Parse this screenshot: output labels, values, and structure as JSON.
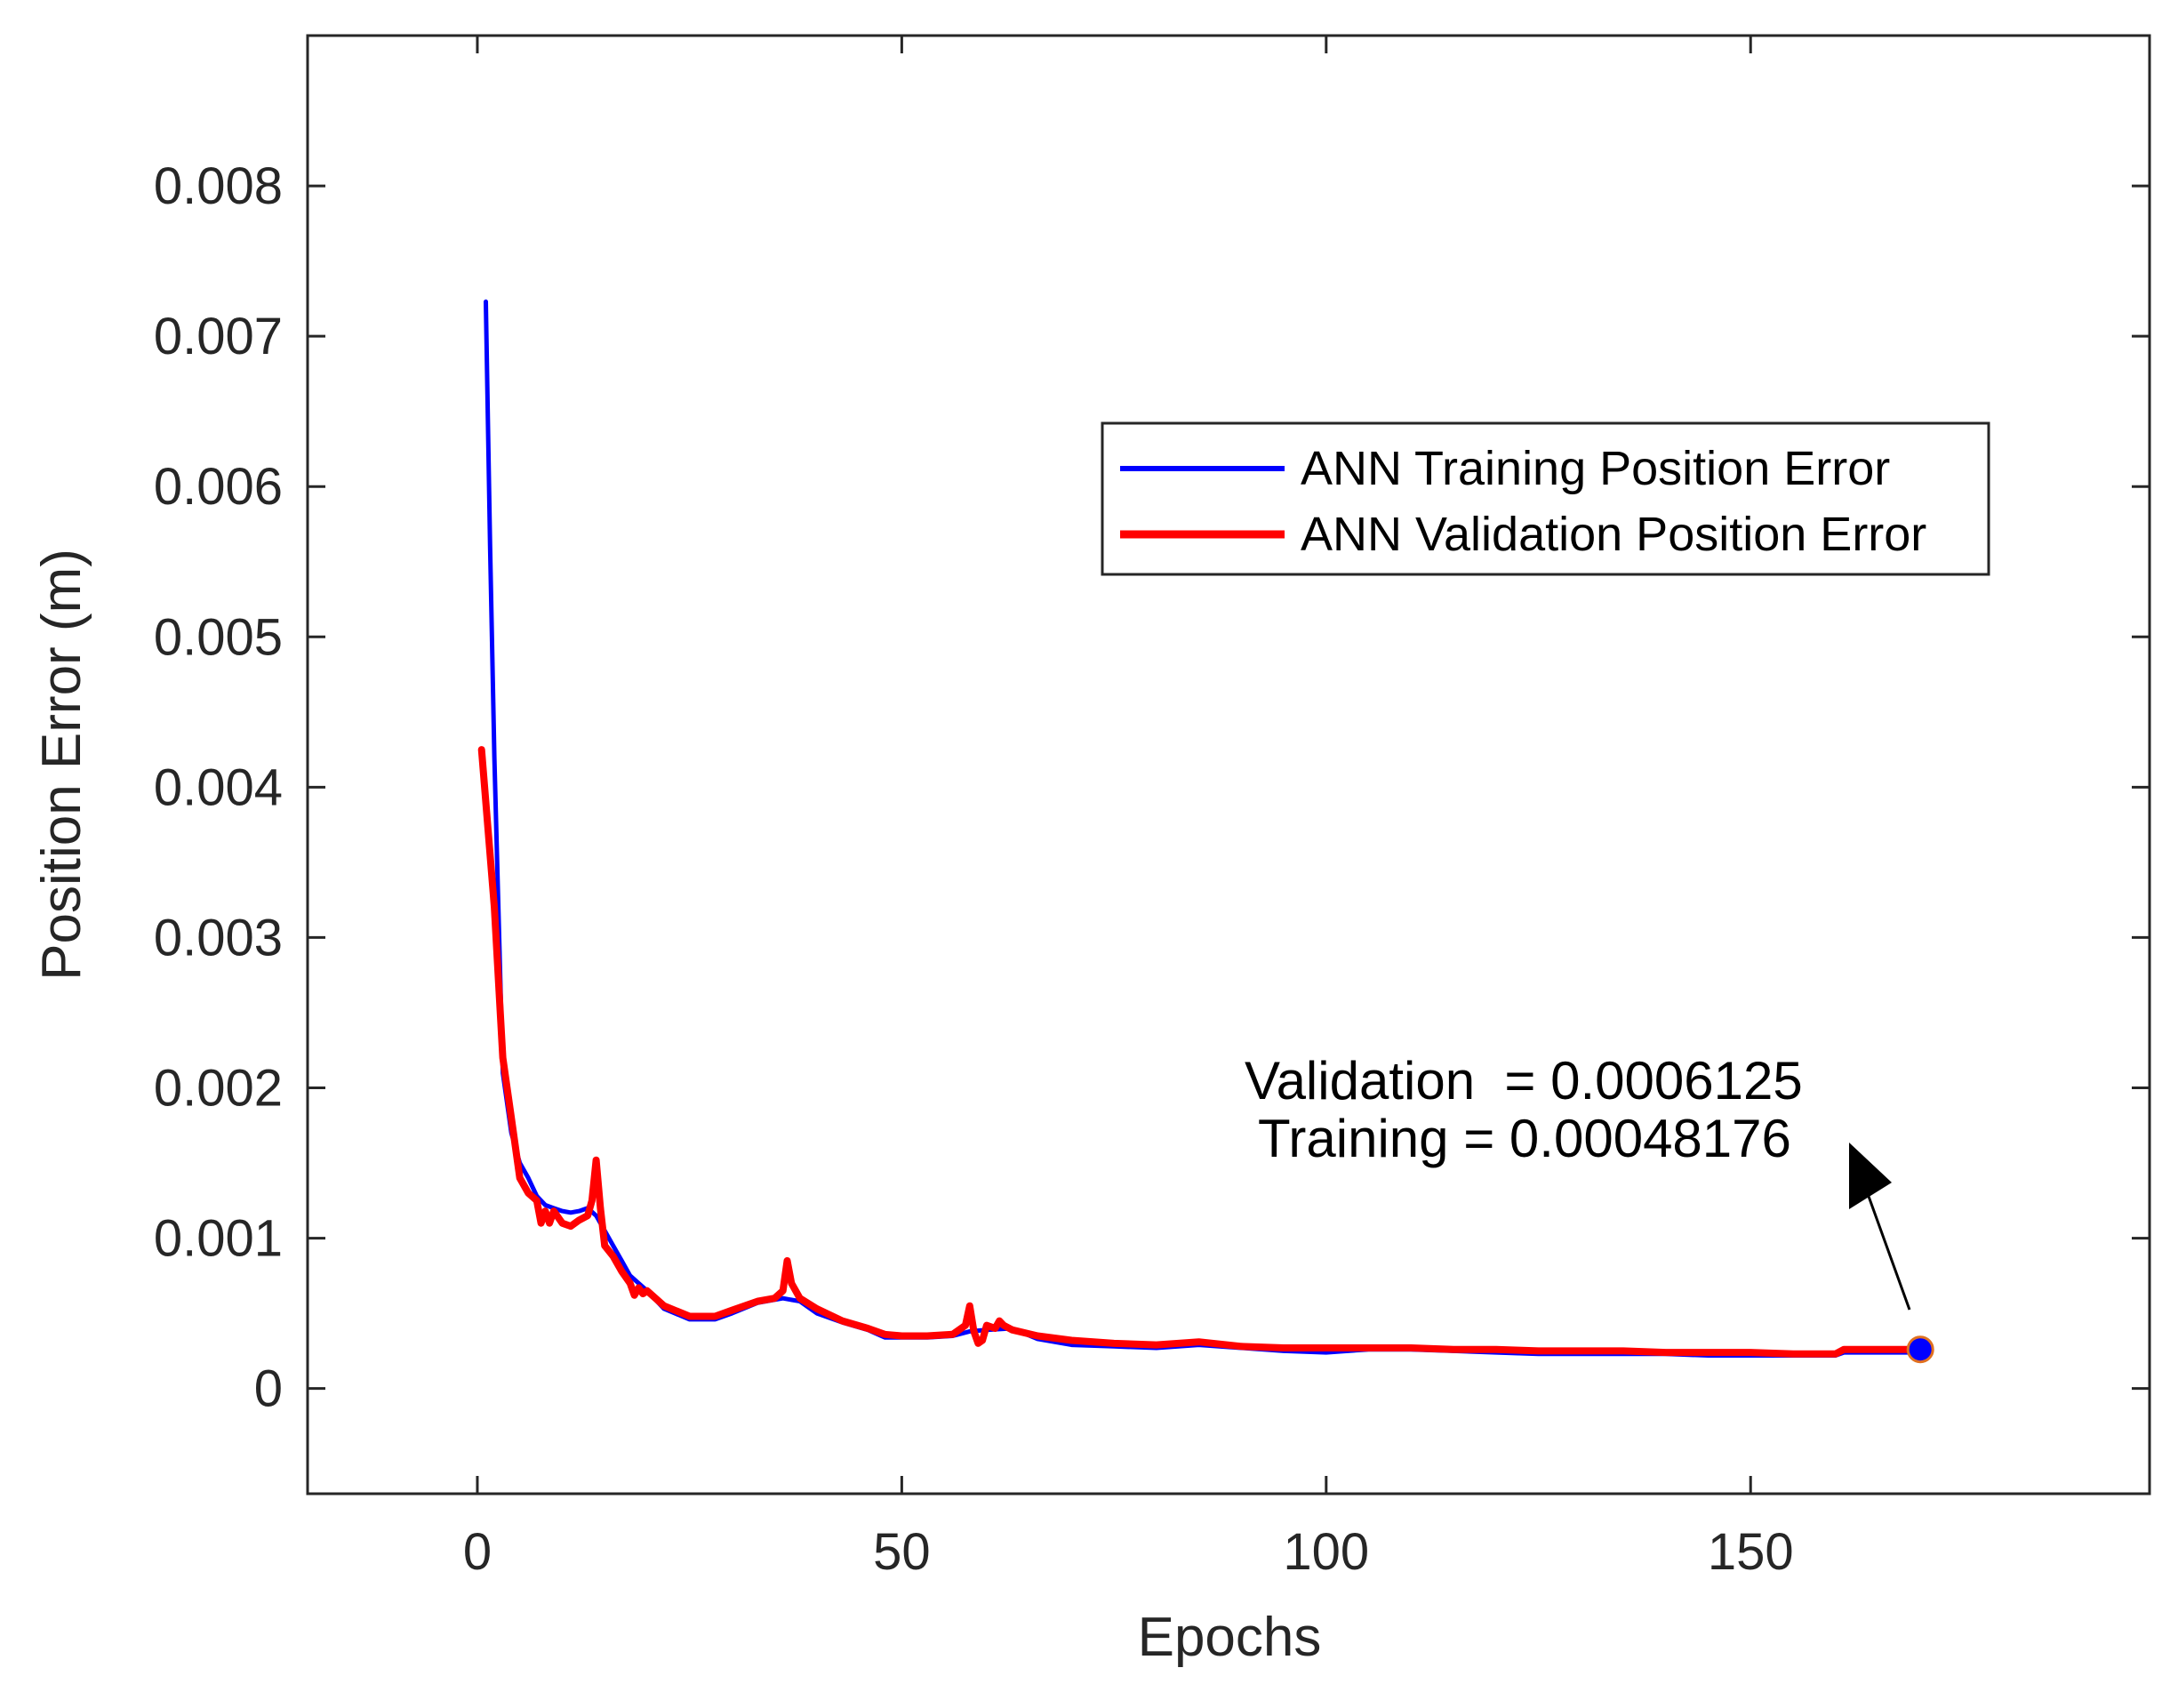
{
  "chart_data": {
    "type": "line",
    "title": "",
    "xlabel": "Epochs",
    "ylabel": "Position Error (m)",
    "xlim": [
      -20,
      197
    ],
    "ylim": [
      -0.0007,
      0.009
    ],
    "x_ticks": [
      0,
      50,
      100,
      150
    ],
    "x_tick_labels": [
      "0",
      "50",
      "100",
      "150"
    ],
    "y_ticks": [
      0,
      0.001,
      0.002,
      0.003,
      0.004,
      0.005,
      0.006,
      0.007,
      0.008
    ],
    "y_tick_labels": [
      "0",
      "0.001",
      "0.002",
      "0.003",
      "0.004",
      "0.005",
      "0.006",
      "0.007",
      "0.008"
    ],
    "grid": false,
    "legend_position": "top-right",
    "series": [
      {
        "name": "ANN Training Position Error",
        "color": "#0000ff",
        "x": [
          1,
          1.5,
          2,
          3,
          4,
          5,
          6,
          7,
          8,
          9,
          10,
          11,
          12,
          13,
          14,
          15,
          16,
          17,
          18,
          20,
          22,
          25,
          28,
          30,
          33,
          36,
          38,
          40,
          43,
          46,
          48,
          50,
          53,
          56,
          58,
          60,
          63,
          66,
          70,
          75,
          80,
          85,
          90,
          95,
          100,
          105,
          110,
          115,
          120,
          125,
          130,
          135,
          140,
          145,
          150,
          155,
          160,
          161,
          165,
          168,
          170
        ],
        "y": [
          0.00723,
          0.0056,
          0.0042,
          0.0021,
          0.0017,
          0.0015,
          0.0014,
          0.00128,
          0.00122,
          0.0012,
          0.00118,
          0.00117,
          0.00118,
          0.0012,
          0.00115,
          0.00105,
          0.00095,
          0.00085,
          0.00075,
          0.00065,
          0.00053,
          0.00046,
          0.00046,
          0.0005,
          0.00057,
          0.0006,
          0.00058,
          0.0005,
          0.00044,
          0.00039,
          0.00034,
          0.00034,
          0.00034,
          0.00035,
          0.00038,
          0.00039,
          0.0004,
          0.00033,
          0.00029,
          0.00028,
          0.00027,
          0.00029,
          0.00027,
          0.00025,
          0.00024,
          0.00026,
          0.00026,
          0.00025,
          0.00024,
          0.00023,
          0.00023,
          0.00023,
          0.00023,
          0.00022,
          0.00022,
          0.00022,
          0.00022,
          0.00024,
          0.00024,
          0.00024,
          0.00024
        ]
      },
      {
        "name": "ANN Validation Position Error",
        "color": "#ff0000",
        "x": [
          0.5,
          1,
          2,
          3,
          4,
          5,
          6,
          7,
          7.5,
          8,
          8.5,
          9,
          10,
          11,
          12,
          13,
          13.5,
          14,
          14.5,
          15,
          16,
          17,
          18,
          18.5,
          19,
          19.5,
          20,
          22,
          25,
          28,
          30,
          33,
          35,
          36,
          36.5,
          37,
          38,
          40,
          43,
          46,
          48,
          50,
          53,
          56,
          57.5,
          58,
          58.5,
          59,
          59.5,
          60,
          61,
          61.5,
          62,
          63,
          66,
          70,
          75,
          80,
          85,
          90,
          95,
          100,
          105,
          110,
          115,
          120,
          125,
          130,
          135,
          140,
          145,
          150,
          155,
          160,
          161,
          165,
          168,
          170
        ],
        "y": [
          0.00425,
          0.0039,
          0.0032,
          0.0022,
          0.0018,
          0.0014,
          0.0013,
          0.00125,
          0.0011,
          0.00118,
          0.0011,
          0.00118,
          0.0011,
          0.00108,
          0.00112,
          0.00115,
          0.00125,
          0.00152,
          0.0012,
          0.00095,
          0.00088,
          0.00078,
          0.0007,
          0.00062,
          0.00067,
          0.00063,
          0.00065,
          0.00055,
          0.00048,
          0.00048,
          0.00052,
          0.00058,
          0.0006,
          0.00065,
          0.00085,
          0.0007,
          0.0006,
          0.00053,
          0.00045,
          0.0004,
          0.00036,
          0.00035,
          0.00035,
          0.00036,
          0.00042,
          0.00055,
          0.00038,
          0.0003,
          0.00032,
          0.00042,
          0.0004,
          0.00045,
          0.00042,
          0.00039,
          0.00035,
          0.00032,
          0.0003,
          0.00029,
          0.00031,
          0.00028,
          0.00027,
          0.00027,
          0.00027,
          0.00027,
          0.00026,
          0.00026,
          0.00025,
          0.00025,
          0.00025,
          0.00024,
          0.00024,
          0.00024,
          0.00023,
          0.00023,
          0.00026,
          0.00026,
          0.00026,
          0.00026
        ]
      }
    ],
    "end_marker": {
      "x": 170,
      "y": 0.00026,
      "fill": "#0000ff",
      "edge": "#e07020"
    },
    "annotation": {
      "line1": "Validation  = 0.0006125",
      "line2": "Training = 0.00048176"
    }
  }
}
